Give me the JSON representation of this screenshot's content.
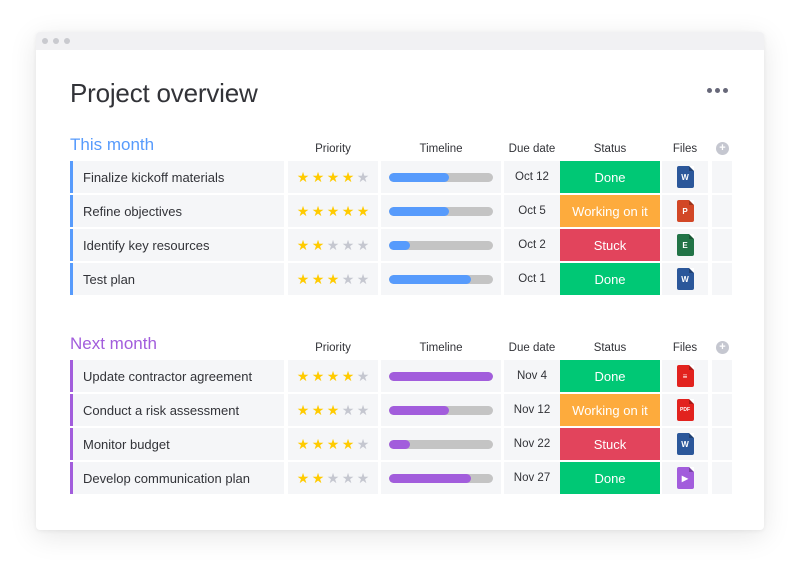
{
  "page": {
    "title": "Project overview"
  },
  "columns": {
    "priority": "Priority",
    "timeline": "Timeline",
    "due_date": "Due date",
    "status": "Status",
    "files": "Files"
  },
  "colors": {
    "group1": "#579bfc",
    "group2": "#a25ddc",
    "done": "#00c875",
    "working": "#fdab3d",
    "stuck": "#e2445c",
    "star_on": "#ffcb00",
    "star_off": "#c5c7d0"
  },
  "groups": [
    {
      "title": "This month",
      "color": "#579bfc",
      "rows": [
        {
          "name": "Finalize kickoff materials",
          "stars": 4,
          "timeline_progress": 0.58,
          "due": "Oct 12",
          "status": "Done",
          "status_color": "#00c875",
          "file_icon": "word-doc-icon",
          "file_label": "W",
          "file_color": "#2b579a"
        },
        {
          "name": "Refine objectives",
          "stars": 5,
          "timeline_progress": 0.58,
          "due": "Oct 5",
          "status": "Working on it",
          "status_color": "#fdab3d",
          "file_icon": "powerpoint-doc-icon",
          "file_label": "P",
          "file_color": "#d24726"
        },
        {
          "name": "Identify key resources",
          "stars": 2,
          "timeline_progress": 0.2,
          "due": "Oct 2",
          "status": "Stuck",
          "status_color": "#e2445c",
          "file_icon": "excel-doc-icon",
          "file_label": "E",
          "file_color": "#217346"
        },
        {
          "name": "Test plan",
          "stars": 3,
          "timeline_progress": 0.79,
          "due": "Oct 1",
          "status": "Done",
          "status_color": "#00c875",
          "file_icon": "word-doc-icon",
          "file_label": "W",
          "file_color": "#2b579a"
        }
      ]
    },
    {
      "title": "Next month",
      "color": "#a25ddc",
      "rows": [
        {
          "name": "Update contractor agreement",
          "stars": 4,
          "timeline_progress": 1.0,
          "due": "Nov 4",
          "status": "Done",
          "status_color": "#00c875",
          "file_icon": "document-red-icon",
          "file_label": "≡",
          "file_color": "#e2221e"
        },
        {
          "name": "Conduct a risk assessment",
          "stars": 3,
          "timeline_progress": 0.58,
          "due": "Nov 12",
          "status": "Working on it",
          "status_color": "#fdab3d",
          "file_icon": "pdf-doc-icon",
          "file_label": "PDF",
          "file_color": "#e2221e"
        },
        {
          "name": "Monitor budget",
          "stars": 4,
          "timeline_progress": 0.2,
          "due": "Nov 22",
          "status": "Stuck",
          "status_color": "#e2445c",
          "file_icon": "word-doc-icon",
          "file_label": "W",
          "file_color": "#2b579a"
        },
        {
          "name": "Develop communication plan",
          "stars": 2,
          "timeline_progress": 0.79,
          "due": "Nov 27",
          "status": "Done",
          "status_color": "#00c875",
          "file_icon": "video-file-icon",
          "file_label": "▶",
          "file_color": "#a25ddc"
        }
      ]
    }
  ]
}
